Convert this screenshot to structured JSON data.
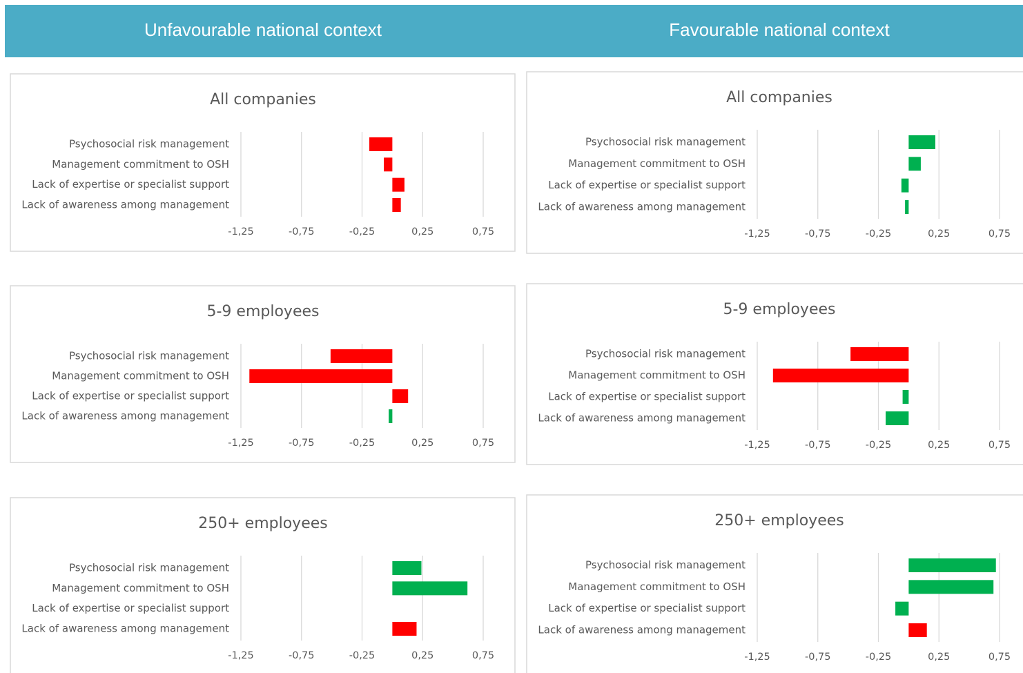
{
  "headers": [
    "Unfavourable national context",
    "Favourable national context"
  ],
  "chart_data": [
    {
      "type": "bar",
      "title": "All companies",
      "categories": [
        "Psychosocial risk management",
        "Management commitment to OSH",
        "Lack of expertise or specialist support",
        "Lack of awareness among management"
      ],
      "values": [
        -0.19,
        -0.07,
        0.1,
        0.07
      ],
      "colors": [
        "#ff0000",
        "#ff0000",
        "#ff0000",
        "#ff0000"
      ],
      "xlim": [
        -1.25,
        0.75
      ],
      "xticks": [
        {
          "value": -1.25,
          "label": "-1,25"
        },
        {
          "value": -0.75,
          "label": "-0,75"
        },
        {
          "value": -0.25,
          "label": "-0,25"
        },
        {
          "value": 0.25,
          "label": "0,25"
        },
        {
          "value": 0.75,
          "label": "0,75"
        }
      ],
      "grid": true
    },
    {
      "type": "bar",
      "title": "All companies",
      "categories": [
        "Psychosocial risk management",
        "Management commitment to OSH",
        "Lack of expertise or specialist support",
        "Lack of awareness among management"
      ],
      "values": [
        0.22,
        0.1,
        -0.06,
        -0.03
      ],
      "colors": [
        "#00b050",
        "#00b050",
        "#00b050",
        "#00b050"
      ],
      "xlim": [
        -1.25,
        0.75
      ],
      "xticks": [
        {
          "value": -1.25,
          "label": "-1,25"
        },
        {
          "value": -0.75,
          "label": "-0,75"
        },
        {
          "value": -0.25,
          "label": "-0,25"
        },
        {
          "value": 0.25,
          "label": "0,25"
        },
        {
          "value": 0.75,
          "label": "0,75"
        }
      ],
      "grid": true
    },
    {
      "type": "bar",
      "title": "5-9 employees",
      "categories": [
        "Psychosocial risk management",
        "Management commitment to OSH",
        "Lack of expertise or specialist support",
        "Lack of awareness among management"
      ],
      "values": [
        -0.51,
        -1.18,
        0.13,
        -0.03
      ],
      "colors": [
        "#ff0000",
        "#ff0000",
        "#ff0000",
        "#00b050"
      ],
      "xlim": [
        -1.25,
        0.75
      ],
      "xticks": [
        {
          "value": -1.25,
          "label": "-1,25"
        },
        {
          "value": -0.75,
          "label": "-0,75"
        },
        {
          "value": -0.25,
          "label": "-0,25"
        },
        {
          "value": 0.25,
          "label": "0,25"
        },
        {
          "value": 0.75,
          "label": "0,75"
        }
      ],
      "grid": true
    },
    {
      "type": "bar",
      "title": "5-9 employees",
      "categories": [
        "Psychosocial risk management",
        "Management commitment to OSH",
        "Lack of expertise or specialist support",
        "Lack of awareness among management"
      ],
      "values": [
        -0.48,
        -1.12,
        -0.05,
        -0.19
      ],
      "colors": [
        "#ff0000",
        "#ff0000",
        "#00b050",
        "#00b050"
      ],
      "xlim": [
        -1.25,
        0.75
      ],
      "xticks": [
        {
          "value": -1.25,
          "label": "-1,25"
        },
        {
          "value": -0.75,
          "label": "-0,75"
        },
        {
          "value": -0.25,
          "label": "-0,25"
        },
        {
          "value": 0.25,
          "label": "0,25"
        },
        {
          "value": 0.75,
          "label": "0,75"
        }
      ],
      "grid": true
    },
    {
      "type": "bar",
      "title": "250+ employees",
      "categories": [
        "Psychosocial risk management",
        "Management commitment to OSH",
        "Lack of expertise or specialist support",
        "Lack of awareness among management"
      ],
      "values": [
        0.24,
        0.62,
        0,
        0.2
      ],
      "colors": [
        "#00b050",
        "#00b050",
        "#00b050",
        "#ff0000"
      ],
      "xlim": [
        -1.25,
        0.75
      ],
      "xticks": [
        {
          "value": -1.25,
          "label": "-1,25"
        },
        {
          "value": -0.75,
          "label": "-0,75"
        },
        {
          "value": -0.25,
          "label": "-0,25"
        },
        {
          "value": 0.25,
          "label": "0,25"
        },
        {
          "value": 0.75,
          "label": "0,75"
        }
      ],
      "grid": true
    },
    {
      "type": "bar",
      "title": "250+ employees",
      "categories": [
        "Psychosocial risk management",
        "Management commitment to OSH",
        "Lack of expertise or specialist support",
        "Lack of awareness among management"
      ],
      "values": [
        0.72,
        0.7,
        -0.11,
        0.15
      ],
      "colors": [
        "#00b050",
        "#00b050",
        "#00b050",
        "#ff0000"
      ],
      "xlim": [
        -1.25,
        0.75
      ],
      "xticks": [
        {
          "value": -1.25,
          "label": "-1,25"
        },
        {
          "value": -0.75,
          "label": "-0,75"
        },
        {
          "value": -0.25,
          "label": "-0,25"
        },
        {
          "value": 0.25,
          "label": "0,25"
        },
        {
          "value": 0.75,
          "label": "0,75"
        }
      ],
      "grid": true
    }
  ]
}
